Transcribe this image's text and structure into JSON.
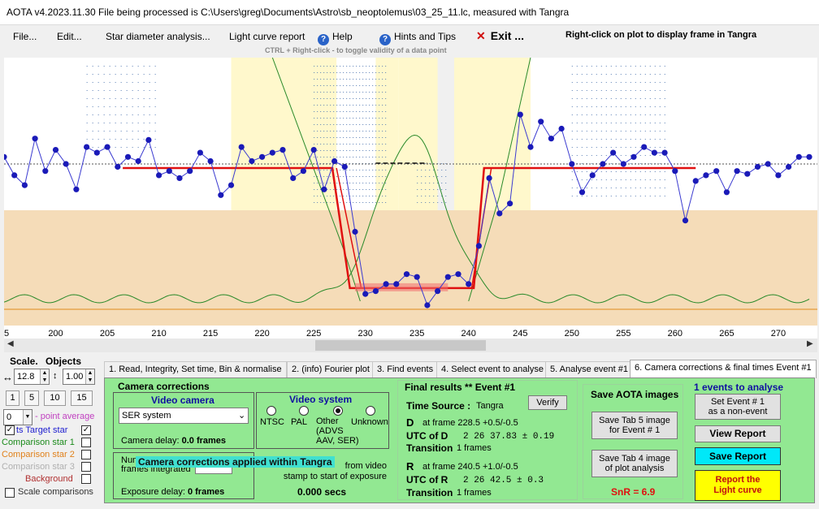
{
  "window": {
    "title": "AOTA v4.2023.11.30    File being processed is C:\\Users\\greg\\Documents\\Astro\\sb_neoptolemus\\03_25_11.lc, measured with Tangra"
  },
  "menu": {
    "file": "File...",
    "edit": "Edit...",
    "star_diameter": "Star diameter analysis...",
    "light_curve_report": "Light curve report",
    "help": "Help",
    "hints": "Hints and Tips",
    "exit": "Exit ...",
    "help_icon": "?",
    "exit_icon": "✕"
  },
  "plot_hint": "CTRL + Right-click  -  to toggle validity of a data point",
  "right_click_tip": "Right-click on plot to display frame in Tangra",
  "chart_data": {
    "type": "scatter",
    "x_ticks": [
      "5",
      "200",
      "205",
      "210",
      "215",
      "220",
      "225",
      "230",
      "235",
      "240",
      "245",
      "250",
      "255",
      "260",
      "265",
      "270"
    ],
    "xlim": [
      195,
      273
    ],
    "series": [
      {
        "x": [
          195,
          196,
          197,
          198,
          199,
          200,
          201,
          202,
          203,
          204,
          205,
          206,
          207,
          208,
          209,
          210,
          211,
          212,
          213,
          214,
          215,
          216,
          217,
          218,
          219,
          220,
          221,
          222,
          223,
          224,
          225,
          226,
          227,
          228,
          229,
          230,
          231,
          232,
          233,
          234,
          235,
          236,
          237,
          238,
          239,
          240,
          241,
          242,
          243,
          244,
          245,
          246,
          247,
          248,
          249,
          250,
          251,
          252,
          253,
          254,
          255,
          256,
          257,
          258,
          259,
          260,
          261,
          262,
          263,
          264,
          265,
          266,
          267,
          268,
          269,
          270,
          271,
          272,
          273
        ],
        "y": [
          1.05,
          0.92,
          0.85,
          1.18,
          0.95,
          1.1,
          1.0,
          0.82,
          1.12,
          1.08,
          1.12,
          0.98,
          1.05,
          1.02,
          1.17,
          0.92,
          0.95,
          0.9,
          0.95,
          1.08,
          1.02,
          0.78,
          0.85,
          1.12,
          1.02,
          1.05,
          1.08,
          1.1,
          0.9,
          0.95,
          1.1,
          0.82,
          1.02,
          0.98,
          0.52,
          0.08,
          0.1,
          0.15,
          0.15,
          0.22,
          0.2,
          0.0,
          0.1,
          0.2,
          0.22,
          0.15,
          0.42,
          0.9,
          0.65,
          0.72,
          1.35,
          1.12,
          1.3,
          1.18,
          1.25,
          1.0,
          0.8,
          0.92,
          1.0,
          1.08,
          1.0,
          1.05,
          1.12,
          1.08,
          1.08,
          0.95,
          0.6,
          0.88,
          0.92,
          0.95,
          0.8,
          0.95,
          0.93,
          0.98,
          1.0,
          0.92,
          0.98,
          1.05,
          1.05
        ]
      }
    ],
    "model_d_frame": 228.5,
    "model_r_frame": 240.5,
    "baseline_level": 1.0,
    "event_level": 0.15
  },
  "left": {
    "scale_label": "Scale.",
    "objects_label": "Objects",
    "arrows": "↔",
    "scale_value": "12.8",
    "objects_value": "1.00",
    "btn_1": "1",
    "btn_5": "5",
    "btn_10": "10",
    "btn_15": "15",
    "avg_value": "0",
    "point_average": "- point average",
    "legend": {
      "target": "ts  Target star",
      "comp1": "Comparison star 1",
      "comp2": "Comparison star 2",
      "comp3": "Comparison star 3",
      "background": "Background",
      "scale_comp": "Scale comparisons"
    },
    "colors": {
      "target": "#2020d0",
      "comp1": "#1a8a1a",
      "comp2": "#e0801a",
      "comp3": "#b0b0b0",
      "background": "#b03030",
      "scale_comp": "#000"
    }
  },
  "tabs": [
    "1.  Read, Integrity, Set time, Bin & normalise",
    "2. (info)  Fourier plot",
    "3. Find events",
    "4. Select event to analyse",
    "5. Analyse event #1",
    "6. Camera corrections & final times Event #1"
  ],
  "camera": {
    "title": "Camera corrections",
    "video_camera": "Video camera",
    "camera_select": "SER system",
    "camera_delay_label": "Camera delay:",
    "camera_delay_value": "0.0 frames",
    "video_system": "Video system",
    "ntsc": "NTSC",
    "pal": "PAL",
    "other": "Other\n(ADVS\nAAV, SER)",
    "unknown": "Unknown",
    "num_label": "Num",
    "frames_integrated": "frames integrated",
    "camera_applied": "Camera corrections applied within Tangra",
    "from_video": "from video\nstamp to start of exposure",
    "secs": "0.000 secs",
    "exposure_delay_label": "Exposure delay:",
    "exposure_delay_value": "0 frames"
  },
  "final": {
    "title": "Final results  **  Event #1",
    "time_source_label": "Time Source :",
    "time_source_value": "Tangra",
    "verify": "Verify",
    "d_label": "D",
    "d_frame": "at frame 228.5  +0.5/-0.5",
    "utc_d_label": "UTC of D",
    "utc_d_value": "2 26 37.83   ± 0.19",
    "transition_label": "Transition",
    "transition_d": "1 frames",
    "r_label": "R",
    "r_frame": "at frame 240.5  +1.0/-0.5",
    "utc_r_label": "UTC of R",
    "utc_r_value": "2 26 42.5    ± 0.3",
    "transition_r": "1 frames"
  },
  "save": {
    "title": "Save AOTA images",
    "tab5": "Save Tab 5 image\nfor Event # 1",
    "tab4": "Save Tab 4 image\nof plot analysis",
    "snr": "SnR = 6.9"
  },
  "events": {
    "title": "1  events to analyse",
    "set_event": "Set Event # 1\nas a non-event",
    "view_report": "View Report",
    "save_report": "Save Report",
    "report_curve": "Report the\nLight curve"
  }
}
